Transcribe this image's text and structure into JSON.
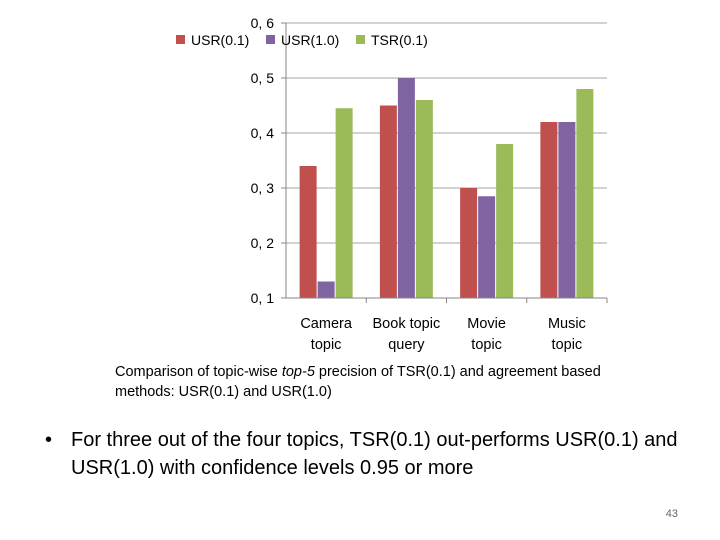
{
  "chart_data": {
    "type": "bar",
    "categories": [
      [
        "Camera",
        "topic"
      ],
      [
        "Book topic",
        "query"
      ],
      [
        "Movie",
        "topic"
      ],
      [
        "Music",
        "topic"
      ]
    ],
    "series": [
      {
        "name": "USR(0.1)",
        "color": "#c0504d",
        "values": [
          0.34,
          0.45,
          0.3,
          0.42
        ]
      },
      {
        "name": "USR(1.0)",
        "color": "#8064a2",
        "values": [
          0.13,
          0.5,
          0.285,
          0.42
        ]
      },
      {
        "name": "TSR(0.1)",
        "color": "#9bbb59",
        "values": [
          0.445,
          0.46,
          0.38,
          0.48
        ]
      }
    ],
    "ylim": [
      0.1,
      0.6
    ],
    "yticks": [
      "0, 1",
      "0, 2",
      "0, 3",
      "0, 4",
      "0, 5",
      "0, 6"
    ],
    "ytick_values": [
      0.1,
      0.2,
      0.3,
      0.4,
      0.5,
      0.6
    ],
    "grid": true,
    "legend_position": "top"
  },
  "caption": {
    "prefix": "Comparison of topic-wise ",
    "emph": "top-5",
    "suffix": " precision of TSR(0.1) and agreement based methods: USR(0.1) and USR(1.0)"
  },
  "bullet": {
    "symbol": "•",
    "text": "For three out of the four topics, TSR(0.1) out-performs USR(0.1) and USR(1.0) with confidence levels 0.95 or more"
  },
  "page_number": "43"
}
